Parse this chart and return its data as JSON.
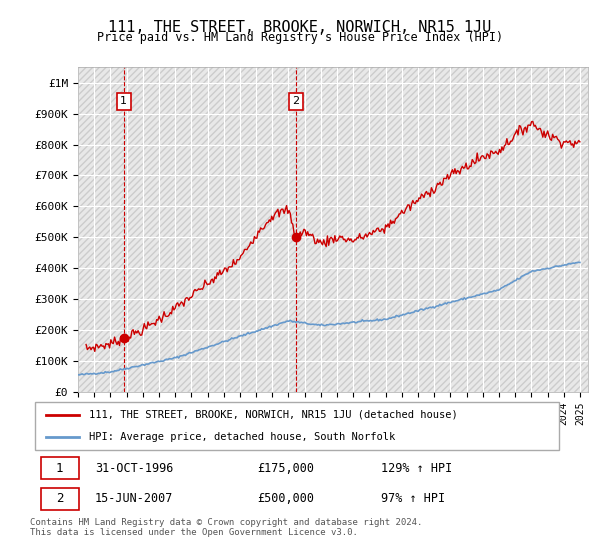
{
  "title": "111, THE STREET, BROOKE, NORWICH, NR15 1JU",
  "subtitle": "Price paid vs. HM Land Registry's House Price Index (HPI)",
  "ylabel_ticks": [
    "£0",
    "£100K",
    "£200K",
    "£300K",
    "£400K",
    "£500K",
    "£600K",
    "£700K",
    "£800K",
    "£900K",
    "£1M"
  ],
  "ytick_values": [
    0,
    100000,
    200000,
    300000,
    400000,
    500000,
    600000,
    700000,
    800000,
    900000,
    1000000
  ],
  "ylim": [
    0,
    1050000
  ],
  "xlim_start": 1994.0,
  "xlim_end": 2025.5,
  "sale1_x": 1996.83,
  "sale1_y": 175000,
  "sale2_x": 2007.46,
  "sale2_y": 500000,
  "sale1_label": "1",
  "sale2_label": "2",
  "sale_color": "#cc0000",
  "hpi_color": "#6699cc",
  "legend_line1": "111, THE STREET, BROOKE, NORWICH, NR15 1JU (detached house)",
  "legend_line2": "HPI: Average price, detached house, South Norfolk",
  "table_row1": [
    "1",
    "31-OCT-1996",
    "£175,000",
    "129% ↑ HPI"
  ],
  "table_row2": [
    "2",
    "15-JUN-2007",
    "£500,000",
    "97% ↑ HPI"
  ],
  "footer": "Contains HM Land Registry data © Crown copyright and database right 2024.\nThis data is licensed under the Open Government Licence v3.0.",
  "background_color": "#ffffff",
  "plot_bg_color": "#f0f0f0",
  "grid_color": "#ffffff",
  "hatch_color": "#d8d8d8"
}
